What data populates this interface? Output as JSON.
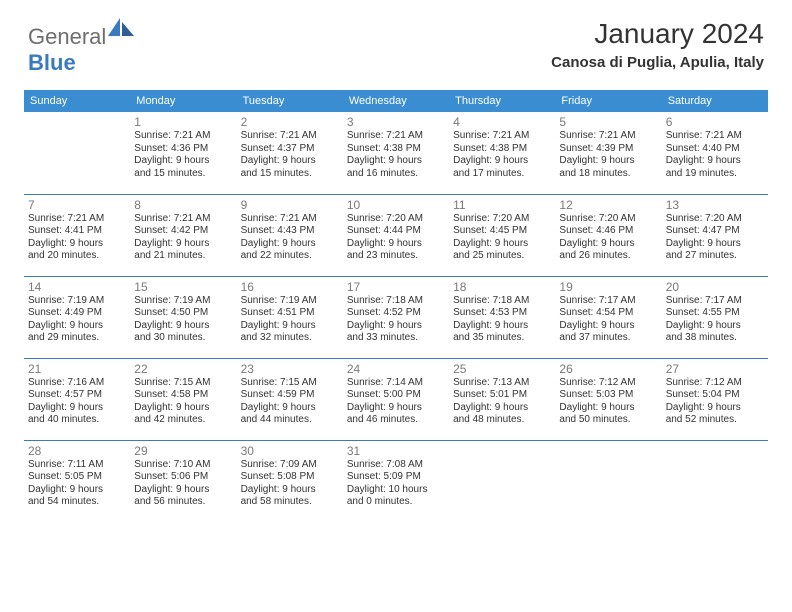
{
  "brand": {
    "part1": "General",
    "part2": "Blue"
  },
  "title": "January 2024",
  "location": "Canosa di Puglia, Apulia, Italy",
  "colors": {
    "header_bg": "#3a8dd0",
    "header_text": "#ffffff",
    "border": "#3a7bbf",
    "daynum": "#7a7a7a",
    "body_text": "#333333",
    "logo_gray": "#6e6e6e",
    "logo_blue": "#3a7bbf",
    "page_bg": "#ffffff"
  },
  "typography": {
    "title_fontsize": 28,
    "location_fontsize": 15,
    "header_fontsize": 11,
    "daynum_fontsize": 12,
    "cell_fontsize": 10
  },
  "day_headers": [
    "Sunday",
    "Monday",
    "Tuesday",
    "Wednesday",
    "Thursday",
    "Friday",
    "Saturday"
  ],
  "weeks": [
    [
      {
        "n": "",
        "lines": []
      },
      {
        "n": "1",
        "lines": [
          "Sunrise: 7:21 AM",
          "Sunset: 4:36 PM",
          "Daylight: 9 hours",
          "and 15 minutes."
        ]
      },
      {
        "n": "2",
        "lines": [
          "Sunrise: 7:21 AM",
          "Sunset: 4:37 PM",
          "Daylight: 9 hours",
          "and 15 minutes."
        ]
      },
      {
        "n": "3",
        "lines": [
          "Sunrise: 7:21 AM",
          "Sunset: 4:38 PM",
          "Daylight: 9 hours",
          "and 16 minutes."
        ]
      },
      {
        "n": "4",
        "lines": [
          "Sunrise: 7:21 AM",
          "Sunset: 4:38 PM",
          "Daylight: 9 hours",
          "and 17 minutes."
        ]
      },
      {
        "n": "5",
        "lines": [
          "Sunrise: 7:21 AM",
          "Sunset: 4:39 PM",
          "Daylight: 9 hours",
          "and 18 minutes."
        ]
      },
      {
        "n": "6",
        "lines": [
          "Sunrise: 7:21 AM",
          "Sunset: 4:40 PM",
          "Daylight: 9 hours",
          "and 19 minutes."
        ]
      }
    ],
    [
      {
        "n": "7",
        "lines": [
          "Sunrise: 7:21 AM",
          "Sunset: 4:41 PM",
          "Daylight: 9 hours",
          "and 20 minutes."
        ]
      },
      {
        "n": "8",
        "lines": [
          "Sunrise: 7:21 AM",
          "Sunset: 4:42 PM",
          "Daylight: 9 hours",
          "and 21 minutes."
        ]
      },
      {
        "n": "9",
        "lines": [
          "Sunrise: 7:21 AM",
          "Sunset: 4:43 PM",
          "Daylight: 9 hours",
          "and 22 minutes."
        ]
      },
      {
        "n": "10",
        "lines": [
          "Sunrise: 7:20 AM",
          "Sunset: 4:44 PM",
          "Daylight: 9 hours",
          "and 23 minutes."
        ]
      },
      {
        "n": "11",
        "lines": [
          "Sunrise: 7:20 AM",
          "Sunset: 4:45 PM",
          "Daylight: 9 hours",
          "and 25 minutes."
        ]
      },
      {
        "n": "12",
        "lines": [
          "Sunrise: 7:20 AM",
          "Sunset: 4:46 PM",
          "Daylight: 9 hours",
          "and 26 minutes."
        ]
      },
      {
        "n": "13",
        "lines": [
          "Sunrise: 7:20 AM",
          "Sunset: 4:47 PM",
          "Daylight: 9 hours",
          "and 27 minutes."
        ]
      }
    ],
    [
      {
        "n": "14",
        "lines": [
          "Sunrise: 7:19 AM",
          "Sunset: 4:49 PM",
          "Daylight: 9 hours",
          "and 29 minutes."
        ]
      },
      {
        "n": "15",
        "lines": [
          "Sunrise: 7:19 AM",
          "Sunset: 4:50 PM",
          "Daylight: 9 hours",
          "and 30 minutes."
        ]
      },
      {
        "n": "16",
        "lines": [
          "Sunrise: 7:19 AM",
          "Sunset: 4:51 PM",
          "Daylight: 9 hours",
          "and 32 minutes."
        ]
      },
      {
        "n": "17",
        "lines": [
          "Sunrise: 7:18 AM",
          "Sunset: 4:52 PM",
          "Daylight: 9 hours",
          "and 33 minutes."
        ]
      },
      {
        "n": "18",
        "lines": [
          "Sunrise: 7:18 AM",
          "Sunset: 4:53 PM",
          "Daylight: 9 hours",
          "and 35 minutes."
        ]
      },
      {
        "n": "19",
        "lines": [
          "Sunrise: 7:17 AM",
          "Sunset: 4:54 PM",
          "Daylight: 9 hours",
          "and 37 minutes."
        ]
      },
      {
        "n": "20",
        "lines": [
          "Sunrise: 7:17 AM",
          "Sunset: 4:55 PM",
          "Daylight: 9 hours",
          "and 38 minutes."
        ]
      }
    ],
    [
      {
        "n": "21",
        "lines": [
          "Sunrise: 7:16 AM",
          "Sunset: 4:57 PM",
          "Daylight: 9 hours",
          "and 40 minutes."
        ]
      },
      {
        "n": "22",
        "lines": [
          "Sunrise: 7:15 AM",
          "Sunset: 4:58 PM",
          "Daylight: 9 hours",
          "and 42 minutes."
        ]
      },
      {
        "n": "23",
        "lines": [
          "Sunrise: 7:15 AM",
          "Sunset: 4:59 PM",
          "Daylight: 9 hours",
          "and 44 minutes."
        ]
      },
      {
        "n": "24",
        "lines": [
          "Sunrise: 7:14 AM",
          "Sunset: 5:00 PM",
          "Daylight: 9 hours",
          "and 46 minutes."
        ]
      },
      {
        "n": "25",
        "lines": [
          "Sunrise: 7:13 AM",
          "Sunset: 5:01 PM",
          "Daylight: 9 hours",
          "and 48 minutes."
        ]
      },
      {
        "n": "26",
        "lines": [
          "Sunrise: 7:12 AM",
          "Sunset: 5:03 PM",
          "Daylight: 9 hours",
          "and 50 minutes."
        ]
      },
      {
        "n": "27",
        "lines": [
          "Sunrise: 7:12 AM",
          "Sunset: 5:04 PM",
          "Daylight: 9 hours",
          "and 52 minutes."
        ]
      }
    ],
    [
      {
        "n": "28",
        "lines": [
          "Sunrise: 7:11 AM",
          "Sunset: 5:05 PM",
          "Daylight: 9 hours",
          "and 54 minutes."
        ]
      },
      {
        "n": "29",
        "lines": [
          "Sunrise: 7:10 AM",
          "Sunset: 5:06 PM",
          "Daylight: 9 hours",
          "and 56 minutes."
        ]
      },
      {
        "n": "30",
        "lines": [
          "Sunrise: 7:09 AM",
          "Sunset: 5:08 PM",
          "Daylight: 9 hours",
          "and 58 minutes."
        ]
      },
      {
        "n": "31",
        "lines": [
          "Sunrise: 7:08 AM",
          "Sunset: 5:09 PM",
          "Daylight: 10 hours",
          "and 0 minutes."
        ]
      },
      {
        "n": "",
        "lines": []
      },
      {
        "n": "",
        "lines": []
      },
      {
        "n": "",
        "lines": []
      }
    ]
  ]
}
